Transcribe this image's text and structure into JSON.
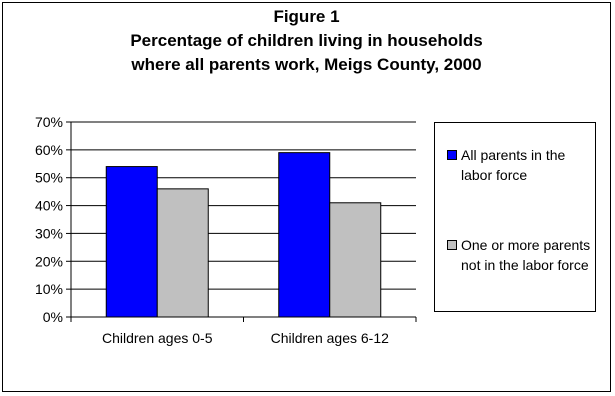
{
  "chart_data": {
    "type": "bar",
    "title_lines": [
      "Figure 1",
      "Percentage of children living in households",
      "where all parents work, Meigs County, 2000"
    ],
    "categories": [
      "Children ages 0-5",
      "Children ages 6-12"
    ],
    "series": [
      {
        "name": "All parents in the labor force",
        "values": [
          54,
          59
        ],
        "color": "#0000FF"
      },
      {
        "name": "One or more parents not in the labor force",
        "values": [
          46,
          41
        ],
        "color": "#C0C0C0"
      }
    ],
    "ylim": [
      0,
      70
    ],
    "yticks": [
      "0%",
      "10%",
      "20%",
      "30%",
      "40%",
      "50%",
      "60%",
      "70%"
    ],
    "ytick_values": [
      0,
      10,
      20,
      30,
      40,
      50,
      60,
      70
    ],
    "grid": true,
    "legend_position": "right"
  }
}
